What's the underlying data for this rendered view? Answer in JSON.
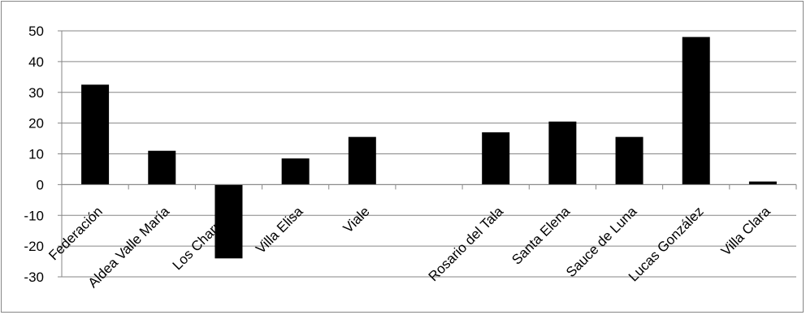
{
  "chart_data": {
    "type": "bar",
    "title": "",
    "xlabel": "",
    "ylabel": "",
    "ylim": [
      -30,
      50
    ],
    "yticks": [
      50,
      40,
      30,
      20,
      10,
      0,
      -10,
      -20,
      -30
    ],
    "grid": true,
    "legend": "none",
    "categories": [
      "Federación",
      "Aldea Valle María",
      "Los Charrúas",
      "Villa Elisa",
      "Viale",
      "",
      "Rosario del Tala",
      "Santa Elena",
      "Sauce de Luna",
      "Lucas González",
      "Villa Clara"
    ],
    "values": [
      32.5,
      11,
      -24,
      8.5,
      15.5,
      0,
      17,
      20.5,
      15.5,
      48,
      1
    ],
    "colors": {
      "bar": "#000000",
      "grid": "#868686",
      "axis": "#868686"
    }
  }
}
